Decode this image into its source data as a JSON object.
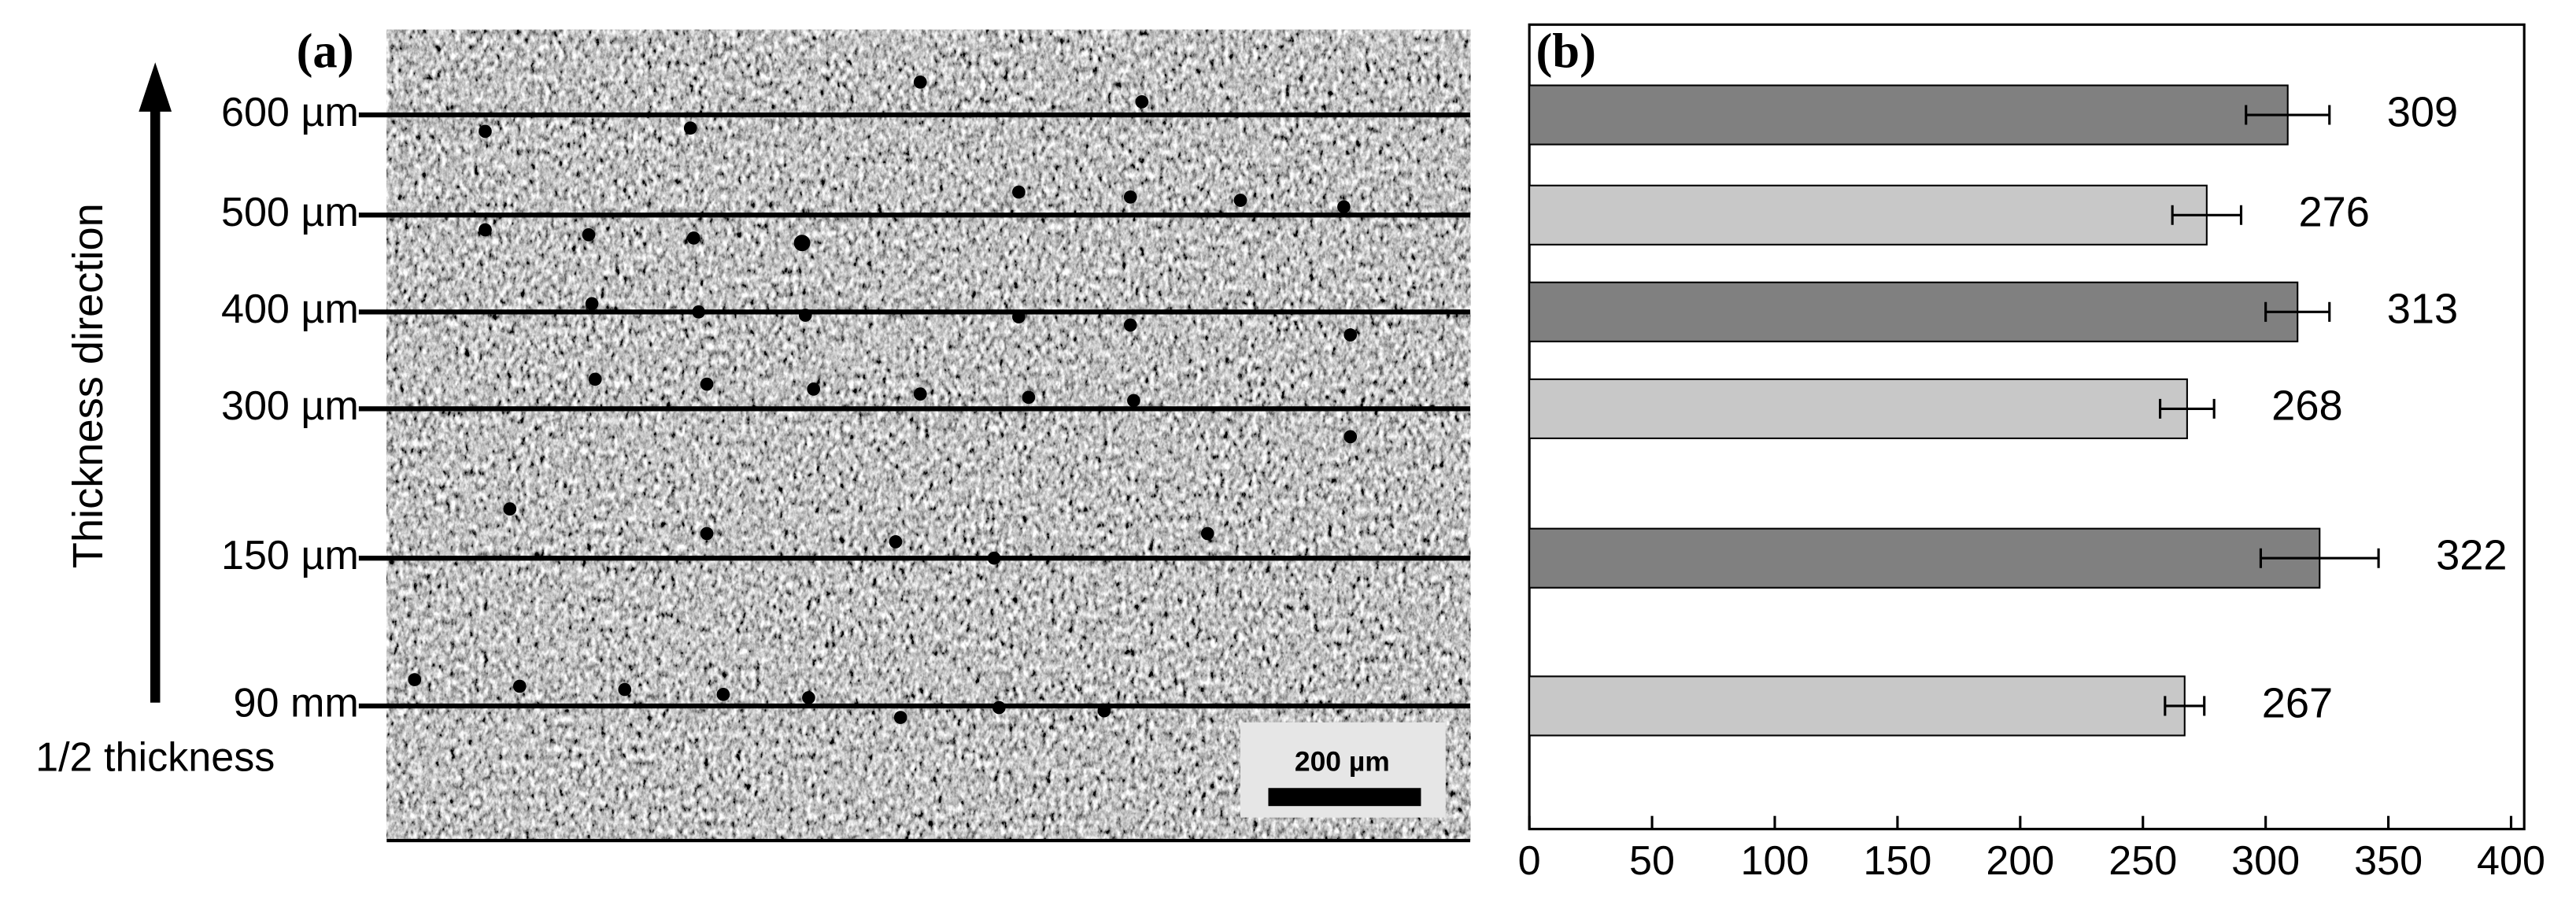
{
  "chart_data": {
    "type": "barh",
    "panel_labels": [
      "(a)",
      "(b)"
    ],
    "axis_label": "Thickness direction",
    "reference_label": "1/2 thickness",
    "scale_bar": "200 µm",
    "categories": [
      "600 µm",
      "500 µm",
      "400 µm",
      "300 µm",
      "150 µm",
      "90 mm"
    ],
    "values": [
      309,
      276,
      313,
      268,
      322,
      267
    ],
    "errors": [
      17,
      14,
      13,
      11,
      24,
      8
    ],
    "colors": [
      "#808080",
      "#c8c8c8",
      "#808080",
      "#c8c8c8",
      "#808080",
      "#c8c8c8"
    ],
    "xlim": [
      0,
      400
    ],
    "xticks": [
      0,
      50,
      100,
      150,
      200,
      250,
      300,
      350,
      400
    ]
  }
}
